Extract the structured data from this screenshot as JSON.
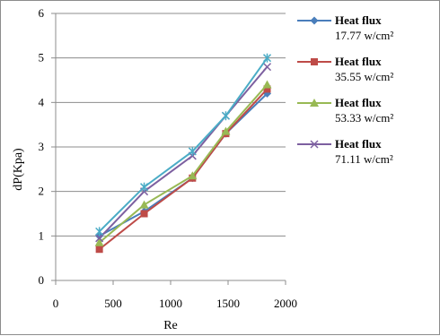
{
  "chart_data": {
    "type": "line",
    "title": "",
    "xlabel": "Re",
    "ylabel": "dP(Kpa)",
    "xlim": [
      0,
      2000
    ],
    "ylim": [
      0,
      6
    ],
    "xticks": [
      0,
      500,
      1000,
      1500,
      2000
    ],
    "yticks": [
      0,
      1,
      2,
      3,
      4,
      5,
      6
    ],
    "grid": "horizontal",
    "legend_position": "right",
    "series": [
      {
        "name": "Heat flux 17.77 w/cm²",
        "legend_lines": [
          "Heat flux",
          "17.77 w/cm²"
        ],
        "color": "#4a7ebb",
        "marker": "diamond",
        "x": [
          380,
          770,
          1190,
          1480,
          1840
        ],
        "y": [
          1.0,
          1.55,
          2.3,
          3.3,
          4.2
        ]
      },
      {
        "name": "Heat flux 35.55 w/cm²",
        "legend_lines": [
          "Heat flux",
          "35.55 w/cm²"
        ],
        "color": "#be4b48",
        "marker": "square",
        "x": [
          380,
          770,
          1190,
          1480,
          1840
        ],
        "y": [
          0.7,
          1.5,
          2.3,
          3.3,
          4.3
        ]
      },
      {
        "name": "Heat flux 53.33 w/cm²",
        "legend_lines": [
          "Heat flux",
          "53.33 w/cm²"
        ],
        "color": "#98b954",
        "marker": "triangle",
        "x": [
          380,
          770,
          1190,
          1480,
          1840
        ],
        "y": [
          0.85,
          1.7,
          2.35,
          3.35,
          4.4
        ]
      },
      {
        "name": "Heat flux 71.11 w/cm²",
        "legend_lines": [
          "Heat flux",
          "71.11 w/cm²"
        ],
        "color": "#7d60a0",
        "marker": "x",
        "x": [
          380,
          770,
          1190,
          1480,
          1840
        ],
        "y": [
          0.95,
          2.0,
          2.8,
          3.7,
          4.8
        ]
      },
      {
        "name": "",
        "legend_lines": [],
        "color": "#4bacc6",
        "marker": "star",
        "x": [
          380,
          770,
          1190,
          1480,
          1840
        ],
        "y": [
          1.1,
          2.1,
          2.9,
          3.7,
          5.0
        ]
      }
    ]
  }
}
